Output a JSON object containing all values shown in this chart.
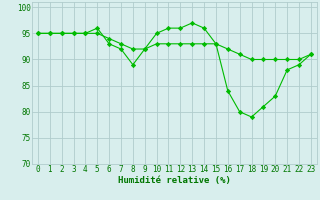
{
  "line1": {
    "x": [
      0,
      1,
      2,
      3,
      4,
      5,
      6,
      7,
      8,
      9,
      10,
      11,
      12,
      13,
      14,
      15,
      16,
      17,
      18,
      19,
      20,
      21,
      22,
      23
    ],
    "y": [
      95,
      95,
      95,
      95,
      95,
      96,
      93,
      92,
      89,
      92,
      95,
      96,
      96,
      97,
      96,
      93,
      84,
      80,
      79,
      81,
      83,
      88,
      89,
      91
    ]
  },
  "line2": {
    "x": [
      0,
      1,
      2,
      3,
      4,
      5,
      6,
      7,
      8,
      9,
      10,
      11,
      12,
      13,
      14,
      15,
      16,
      17,
      18,
      19,
      20,
      21,
      22,
      23
    ],
    "y": [
      95,
      95,
      95,
      95,
      95,
      95,
      94,
      93,
      92,
      92,
      93,
      93,
      93,
      93,
      93,
      93,
      92,
      91,
      90,
      90,
      90,
      90,
      90,
      91
    ]
  },
  "line_color": "#00bb00",
  "marker": "D",
  "marker_size": 2.2,
  "bg_color": "#d8eeed",
  "grid_color": "#b0cccc",
  "xlabel": "Humidité relative (%)",
  "xlabel_color": "#007700",
  "xlabel_fontsize": 6.5,
  "tick_color": "#007700",
  "tick_fontsize": 5.5,
  "ylim": [
    70,
    101
  ],
  "xlim": [
    -0.5,
    23.5
  ],
  "yticks": [
    70,
    75,
    80,
    85,
    90,
    95,
    100
  ],
  "xticks": [
    0,
    1,
    2,
    3,
    4,
    5,
    6,
    7,
    8,
    9,
    10,
    11,
    12,
    13,
    14,
    15,
    16,
    17,
    18,
    19,
    20,
    21,
    22,
    23
  ]
}
